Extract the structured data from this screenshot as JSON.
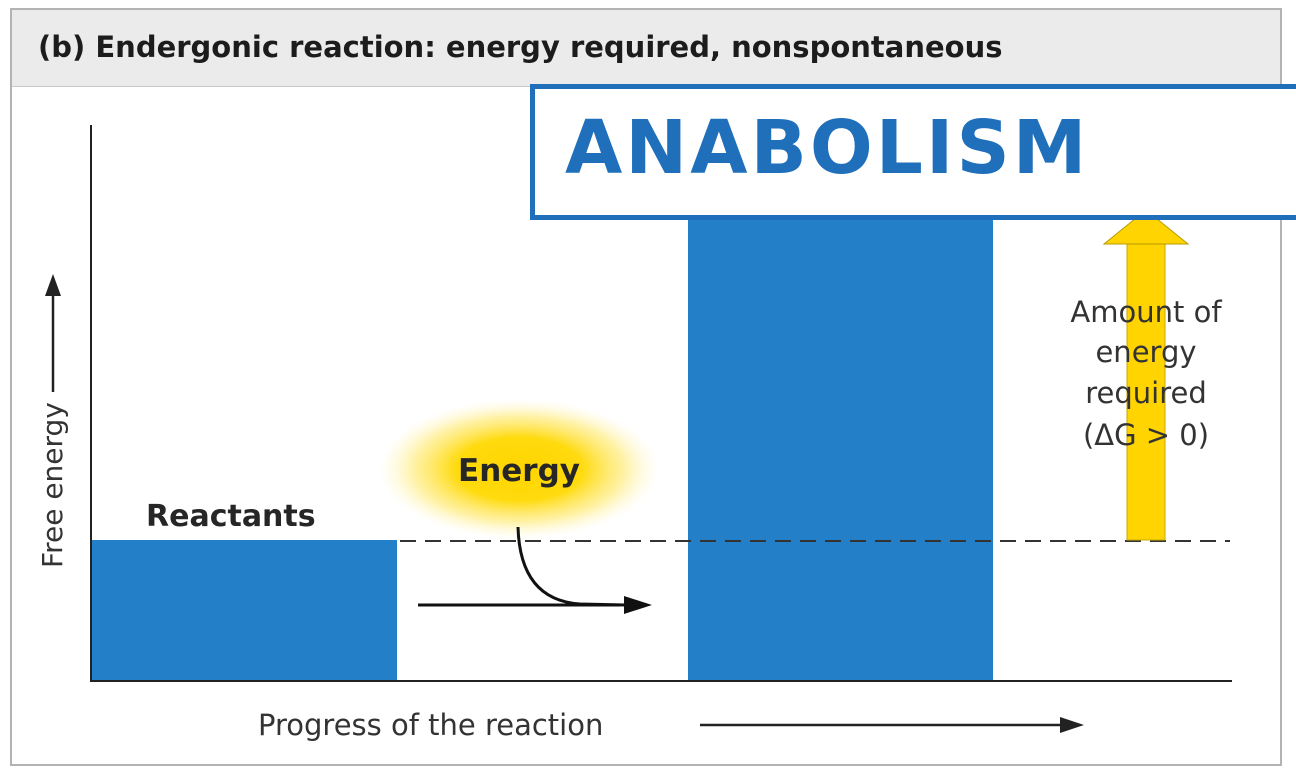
{
  "title": "(b) Endergonic reaction: energy required, nonspontaneous",
  "banner": "ANABOLISM",
  "y_axis_label": "Free energy",
  "x_axis_label": "Progress of the reaction",
  "reactants_label": "Reactants",
  "energy_label": "Energy",
  "delta_g_note": {
    "line1": "Amount of",
    "line2": "energy",
    "line3": "required",
    "line4": "(ΔG > 0)"
  },
  "colors": {
    "bar": "#2380c8",
    "arrow_gold": "#ffd400",
    "banner_blue": "#1f6fba",
    "title_bg": "#ebebeb"
  }
}
